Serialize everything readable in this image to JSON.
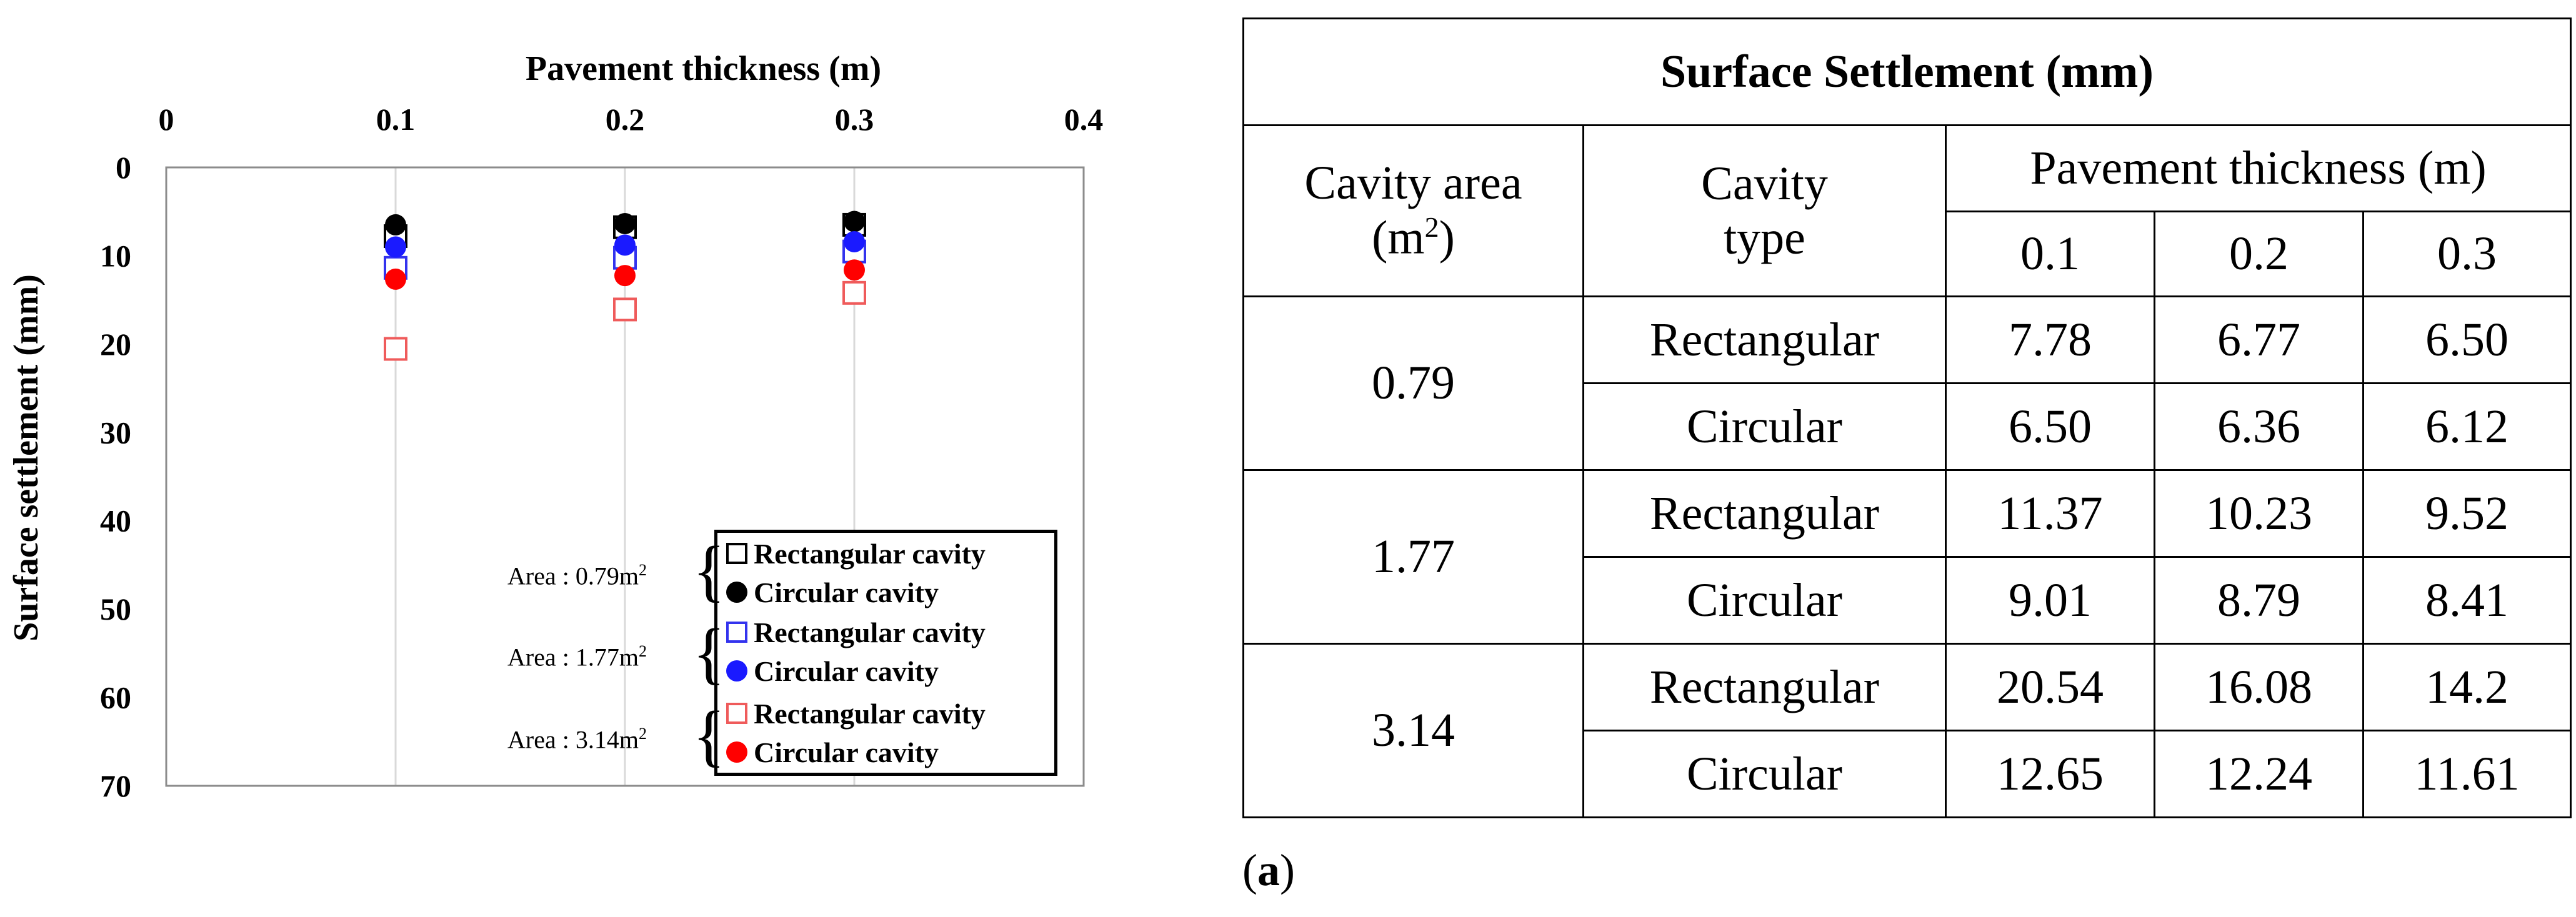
{
  "chart_data": {
    "type": "scatter",
    "title": "",
    "xlabel": "Pavement thickness (m)",
    "ylabel": "Surface settlement (mm)",
    "xlim": [
      0,
      0.4
    ],
    "ylim": [
      0,
      70
    ],
    "y_inverted": true,
    "x_axis_position": "top",
    "xticks": [
      "0",
      "0.1",
      "0.2",
      "0.3",
      "0.4"
    ],
    "yticks": [
      "0",
      "10",
      "20",
      "30",
      "40",
      "50",
      "60",
      "70"
    ],
    "x_values": [
      0.1,
      0.2,
      0.3
    ],
    "grid": "vertical",
    "series": [
      {
        "name": "Rectangular cavity",
        "group": "0.79",
        "marker": "square",
        "color": "#000000",
        "y": [
          7.78,
          6.77,
          6.5
        ]
      },
      {
        "name": "Circular cavity",
        "group": "0.79",
        "marker": "circle",
        "color": "#000000",
        "y": [
          6.5,
          6.36,
          6.12
        ]
      },
      {
        "name": "Rectangular cavity",
        "group": "1.77",
        "marker": "square",
        "color": "#3333ee",
        "y": [
          11.37,
          10.23,
          9.52
        ]
      },
      {
        "name": "Circular cavity",
        "group": "1.77",
        "marker": "circle",
        "color": "#1a1aff",
        "y": [
          9.01,
          8.79,
          8.41
        ]
      },
      {
        "name": "Rectangular cavity",
        "group": "3.14",
        "marker": "square",
        "color": "#ef5b5b",
        "y": [
          20.54,
          16.08,
          14.2
        ]
      },
      {
        "name": "Circular cavity",
        "group": "3.14",
        "marker": "circle",
        "color": "#ff0000",
        "y": [
          12.65,
          12.24,
          11.61
        ]
      }
    ],
    "legend": {
      "placement": "bottom-right",
      "groups": [
        {
          "area_label": "Area : 0.79m",
          "sup": "2",
          "rect_label": "Rectangular cavity",
          "circ_label": "Circular cavity"
        },
        {
          "area_label": "Area : 1.77m",
          "sup": "2",
          "rect_label": "Rectangular cavity",
          "circ_label": "Circular cavity"
        },
        {
          "area_label": "Area : 3.14m",
          "sup": "2",
          "rect_label": "Rectangular cavity",
          "circ_label": "Circular cavity"
        }
      ]
    }
  },
  "table": {
    "title": "Surface Settlement (mm)",
    "col_cavity_area": "Cavity area",
    "col_cavity_area_unit": "(m",
    "col_cavity_area_sup": "2",
    "col_cavity_area_close": ")",
    "col_cavity_type_1": "Cavity",
    "col_cavity_type_2": "type",
    "col_thickness": "Pavement thickness (m)",
    "thickness_values": [
      "0.1",
      "0.2",
      "0.3"
    ],
    "groups": [
      {
        "area": "0.79",
        "rows": [
          {
            "type": "Rectangular",
            "values": [
              "7.78",
              "6.77",
              "6.50"
            ]
          },
          {
            "type": "Circular",
            "values": [
              "6.50",
              "6.36",
              "6.12"
            ]
          }
        ]
      },
      {
        "area": "1.77",
        "rows": [
          {
            "type": "Rectangular",
            "values": [
              "11.37",
              "10.23",
              "9.52"
            ]
          },
          {
            "type": "Circular",
            "values": [
              "9.01",
              "8.79",
              "8.41"
            ]
          }
        ]
      },
      {
        "area": "3.14",
        "rows": [
          {
            "type": "Rectangular",
            "values": [
              "20.54",
              "16.08",
              "14.2"
            ]
          },
          {
            "type": "Circular",
            "values": [
              "12.65",
              "12.24",
              "11.61"
            ]
          }
        ]
      }
    ]
  },
  "caption": {
    "open": "(",
    "letter": "a",
    "close": ")"
  }
}
